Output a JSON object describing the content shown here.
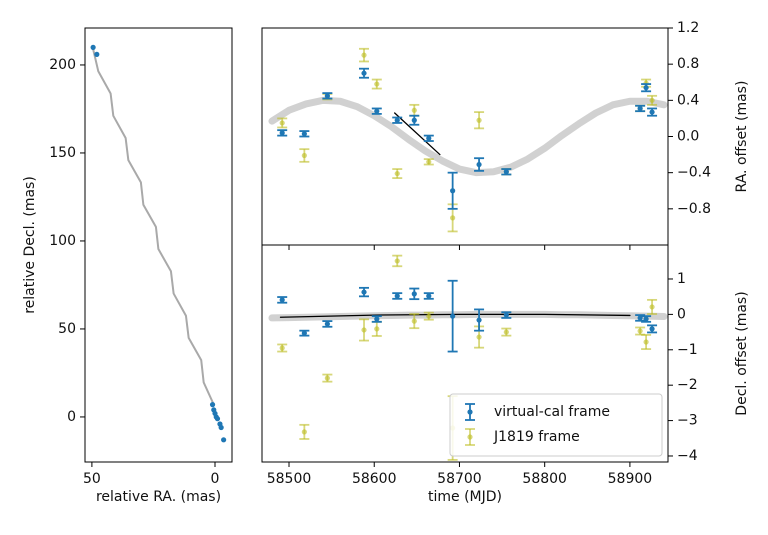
{
  "chart_data": [
    {
      "type": "scatter",
      "xlabel": "relative RA. (mas)",
      "ylabel": "relative Decl. (mas)",
      "xlim": [
        52.8,
        -6.9
      ],
      "ylim": [
        -25.6,
        221
      ],
      "xticks": [
        50,
        0
      ],
      "yticks": [
        0,
        50,
        100,
        150,
        200
      ],
      "series": [
        {
          "style": "line",
          "color": "#a9a9a9",
          "linewidth": 2,
          "x": [
            49.5,
            47.4,
            42.4,
            41.3,
            36.3,
            35.2,
            30.1,
            29.1,
            24.0,
            23.0,
            17.9,
            16.8,
            11.8,
            10.7,
            5.6,
            4.6,
            0.5
          ],
          "values": [
            209,
            196.4,
            183.8,
            171.1,
            158.5,
            145.9,
            133.3,
            120.6,
            108,
            95.4,
            82.8,
            70.1,
            57.5,
            44.9,
            32.3,
            19.6,
            7
          ]
        },
        {
          "style": "points",
          "color": "#1f77b4",
          "x": [
            49.5,
            48,
            1,
            0.5,
            0,
            -0.5,
            -1,
            -2,
            -2.5,
            -3.5
          ],
          "values": [
            210,
            206,
            7,
            4,
            2,
            0,
            -1,
            -4,
            -6,
            -13
          ]
        }
      ]
    },
    {
      "type": "errorbar",
      "ylabel": "RA. offset (mas)",
      "xlim": [
        58468.3,
        58944.7
      ],
      "ylim": [
        -1.2,
        1.2
      ],
      "xticks": [
        58500,
        58600,
        58700,
        58800,
        58900
      ],
      "yticks": [
        {
          "value": -0.8,
          "label": "−0.8"
        },
        {
          "value": -0.4,
          "label": "−0.4"
        },
        {
          "value": 0,
          "label": "0.0"
        },
        0.4,
        0.8,
        1.2
      ],
      "series": [
        {
          "style": "line",
          "color": "#8c8c8c",
          "linewidth": 7,
          "alpha": 0.4,
          "x": [
            58480,
            58500,
            58520,
            58540,
            58560,
            58580,
            58600,
            58620,
            58640,
            58660,
            58680,
            58700,
            58720,
            58740,
            58760,
            58780,
            58800,
            58820,
            58840,
            58860,
            58880,
            58900,
            58920,
            58940
          ],
          "values": [
            0.17,
            0.29,
            0.36,
            0.4,
            0.39,
            0.33,
            0.23,
            0.11,
            -0.03,
            -0.16,
            -0.27,
            -0.36,
            -0.4,
            -0.39,
            -0.34,
            -0.25,
            -0.13,
            0.01,
            0.14,
            0.26,
            0.35,
            0.39,
            0.39,
            0.35
          ]
        },
        {
          "style": "line",
          "color": "#000000",
          "linewidth": 1.3,
          "x": [
            58624,
            58677
          ],
          "values": [
            0.26,
            -0.2
          ]
        },
        {
          "style": "errorbar",
          "color": "#bcbd22",
          "alpha": 0.6,
          "x": [
            58492,
            58518,
            58545,
            58588,
            58603,
            58627,
            58647,
            58664,
            58692,
            58723,
            58755,
            58912,
            58919,
            58926
          ],
          "values": [
            0.15,
            -0.21,
            0.44,
            0.9,
            0.58,
            -0.41,
            0.29,
            -0.28,
            -0.9,
            0.18,
            -0.39,
            0.31,
            0.59,
            0.4
          ],
          "errors": [
            0.05,
            0.07,
            0.03,
            0.07,
            0.05,
            0.05,
            0.06,
            0.03,
            0.15,
            0.09,
            0.03,
            0.03,
            0.04,
            0.05
          ]
        },
        {
          "style": "errorbar",
          "color": "#1f77b4",
          "x": [
            58492,
            58518,
            58545,
            58588,
            58603,
            58627,
            58647,
            58664,
            58692,
            58723,
            58755,
            58912,
            58919,
            58926
          ],
          "values": [
            0.04,
            0.03,
            0.45,
            0.7,
            0.28,
            0.18,
            0.18,
            -0.02,
            -0.6,
            -0.31,
            -0.39,
            0.31,
            0.54,
            0.27
          ],
          "errors": [
            0.03,
            0.03,
            0.03,
            0.05,
            0.03,
            0.03,
            0.05,
            0.03,
            0.2,
            0.07,
            0.03,
            0.03,
            0.04,
            0.04
          ]
        }
      ]
    },
    {
      "type": "errorbar",
      "xlabel": "time (MJD)",
      "ylabel": "Decl. offset (mas)",
      "xlim": [
        58468.3,
        58944.7
      ],
      "ylim": [
        -4.17,
        1.96
      ],
      "xticks": [
        58500,
        58600,
        58700,
        58800,
        58900
      ],
      "yticks": [
        {
          "value": -4,
          "label": "−4"
        },
        {
          "value": -3,
          "label": "−3"
        },
        {
          "value": -2,
          "label": "−2"
        },
        {
          "value": -1,
          "label": "−1"
        },
        0,
        1
      ],
      "legend": "lower right",
      "series": [
        {
          "style": "line",
          "color": "#8c8c8c",
          "linewidth": 7,
          "alpha": 0.4,
          "x": [
            58480,
            58500,
            58520,
            58540,
            58560,
            58580,
            58600,
            58620,
            58640,
            58660,
            58680,
            58700,
            58720,
            58740,
            58760,
            58780,
            58800,
            58820,
            58840,
            58860,
            58880,
            58900,
            58920,
            58940
          ],
          "values": [
            -0.1,
            -0.09,
            -0.08,
            -0.07,
            -0.06,
            -0.05,
            -0.04,
            -0.03,
            -0.02,
            -0.02,
            -0.01,
            -0.01,
            0,
            0,
            0,
            0,
            0,
            -0.01,
            -0.01,
            -0.02,
            -0.03,
            -0.04,
            -0.05,
            -0.06
          ]
        },
        {
          "style": "line",
          "color": "#000000",
          "linewidth": 1.3,
          "x": [
            58490,
            58600,
            58700,
            58800,
            58900
          ],
          "values": [
            -0.08,
            -0.02,
            0,
            0,
            -0.03
          ]
        },
        {
          "style": "errorbar",
          "name": "J1819 frame",
          "color": "#bcbd22",
          "alpha": 0.6,
          "x": [
            58492,
            58518,
            58545,
            58588,
            58603,
            58627,
            58647,
            58664,
            58692,
            58723,
            58755,
            58912,
            58919,
            58926
          ],
          "values": [
            -0.95,
            -3.32,
            -1.8,
            -0.44,
            -0.41,
            1.51,
            -0.19,
            -0.05,
            -3.21,
            -0.64,
            -0.5,
            -0.47,
            -0.78,
            0.21
          ],
          "errors": [
            0.1,
            0.2,
            0.1,
            0.3,
            0.2,
            0.15,
            0.2,
            0.1,
            0.9,
            0.3,
            0.1,
            0.1,
            0.2,
            0.2
          ]
        },
        {
          "style": "errorbar",
          "name": "virtual-cal frame",
          "color": "#1f77b4",
          "x": [
            58492,
            58518,
            58545,
            58588,
            58603,
            58627,
            58647,
            58664,
            58692,
            58723,
            58755,
            58912,
            58919,
            58926
          ],
          "values": [
            0.41,
            -0.53,
            -0.27,
            0.63,
            -0.13,
            0.52,
            0.58,
            0.52,
            -0.05,
            -0.16,
            -0.02,
            -0.1,
            -0.13,
            -0.41
          ],
          "errors": [
            0.08,
            0.07,
            0.08,
            0.12,
            0.08,
            0.08,
            0.15,
            0.08,
            1.0,
            0.3,
            0.08,
            0.08,
            0.08,
            0.1
          ]
        }
      ]
    }
  ]
}
